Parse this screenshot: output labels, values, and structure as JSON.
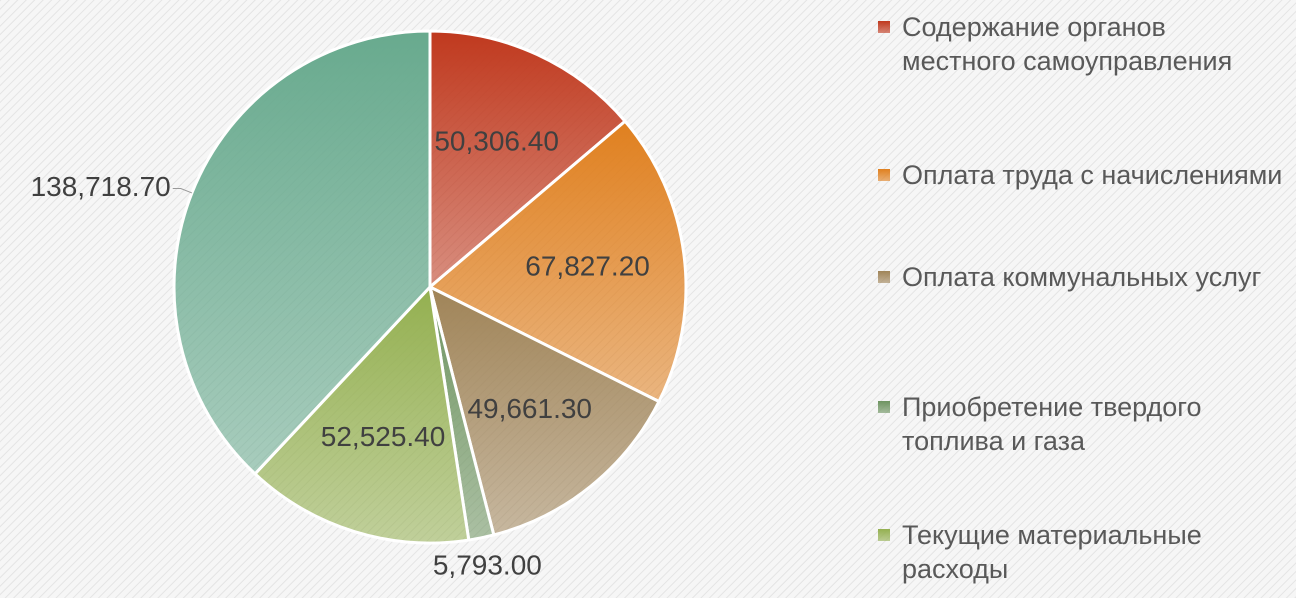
{
  "chart_data": {
    "type": "pie",
    "categories": [
      "Содержание органов местного самоуправления",
      "Оплата труда с начислениями",
      "Оплата коммунальных услуг",
      "Приобретение твердого топлива и газа",
      "Текущие материальные расходы",
      null
    ],
    "values": [
      50306.4,
      67827.2,
      49661.3,
      5793.0,
      52525.4,
      138718.7
    ],
    "value_labels": [
      "50,306.40",
      "67,827.20",
      "49,661.30",
      "5,793.00",
      "52,525.40",
      "138,718.70"
    ],
    "colors": [
      "#c0391e",
      "#e0801f",
      "#a08458",
      "#6e9460",
      "#94b050",
      "#68aa8e"
    ]
  }
}
